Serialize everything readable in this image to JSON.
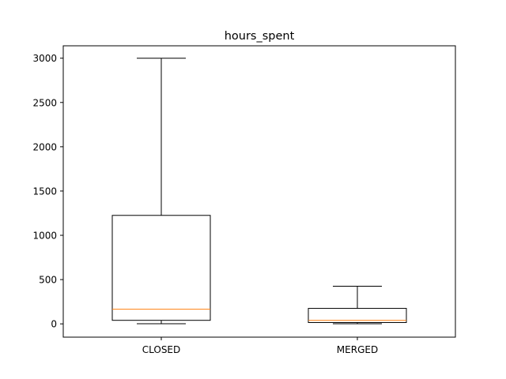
{
  "chart_data": {
    "type": "box",
    "title": "hours_spent",
    "xlabel": "",
    "ylabel": "",
    "categories": [
      "CLOSED",
      "MERGED"
    ],
    "boxes": [
      {
        "category": "CLOSED",
        "whisker_low": 2,
        "q1": 40,
        "median": 165,
        "q3": 1225,
        "whisker_high": 3000
      },
      {
        "category": "MERGED",
        "whisker_low": 2,
        "q1": 15,
        "median": 40,
        "q3": 175,
        "whisker_high": 425
      }
    ],
    "y_ticks": [
      0,
      500,
      1000,
      1500,
      2000,
      2500,
      3000
    ],
    "ylim": [
      -150,
      3140
    ],
    "grid": false,
    "colors": {
      "box": "#000000",
      "median": "#ff7f0e",
      "whisker": "#000000"
    }
  }
}
